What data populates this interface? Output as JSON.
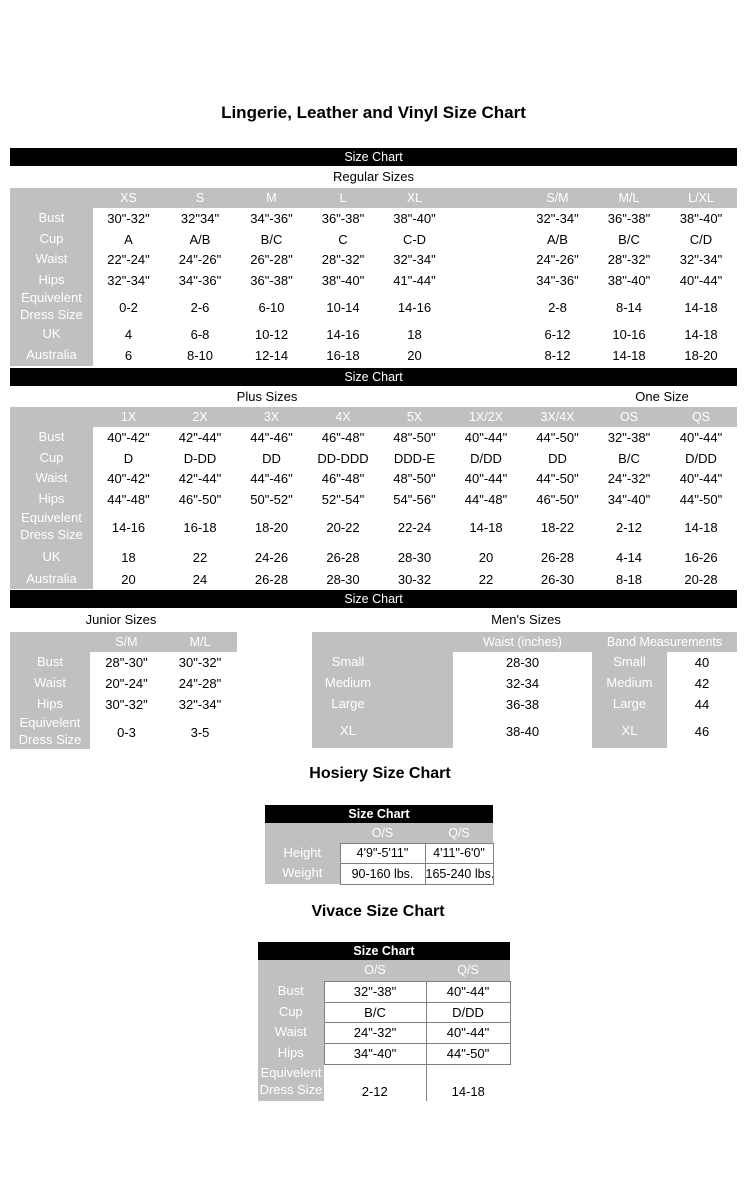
{
  "page_title": "Lingerie, Leather and Vinyl Size Chart",
  "size_chart_bar_label": "Size Chart",
  "colors": {
    "header_gray": "#c0c0c0",
    "bar_black": "#000000"
  },
  "regular": {
    "section_label": "Regular Sizes",
    "columns": [
      "XS",
      "S",
      "M",
      "L",
      "XL",
      "",
      "S/M",
      "M/L",
      "L/XL"
    ],
    "rows": [
      {
        "label": "Bust",
        "values": [
          "30\"-32\"",
          "32\"34\"",
          "34\"-36\"",
          "36\"-38\"",
          "38\"-40\"",
          "",
          "32\"-34\"",
          "36\"-38\"",
          "38\"-40\""
        ]
      },
      {
        "label": "Cup",
        "values": [
          "A",
          "A/B",
          "B/C",
          "C",
          "C-D",
          "",
          "A/B",
          "B/C",
          "C/D"
        ]
      },
      {
        "label": "Waist",
        "values": [
          "22\"-24\"",
          "24\"-26\"",
          "26\"-28\"",
          "28\"-32\"",
          "32\"-34\"",
          "",
          "24\"-26\"",
          "28\"-32\"",
          "32\"-34\""
        ]
      },
      {
        "label": "Hips",
        "values": [
          "32\"-34\"",
          "34\"-36\"",
          "36\"-38\"",
          "38\"-40\"",
          "41\"-44\"",
          "",
          "34\"-36\"",
          "38\"-40\"",
          "40\"-44\""
        ]
      },
      {
        "label": "Equivelent Dress Size",
        "values": [
          "0-2",
          "2-6",
          "6-10",
          "10-14",
          "14-16",
          "",
          "2-8",
          "8-14",
          "14-18"
        ]
      },
      {
        "label": "UK",
        "values": [
          "4",
          "6-8",
          "10-12",
          "14-16",
          "18",
          "",
          "6-12",
          "10-16",
          "14-18"
        ]
      },
      {
        "label": "Australia",
        "values": [
          "6",
          "8-10",
          "12-14",
          "16-18",
          "20",
          "",
          "8-12",
          "14-18",
          "18-20"
        ]
      }
    ]
  },
  "plus": {
    "section_label": "Plus Sizes",
    "one_size_label": "One Size",
    "columns": [
      "1X",
      "2X",
      "3X",
      "4X",
      "5X",
      "1X/2X",
      "3X/4X",
      "OS",
      "QS"
    ],
    "rows": [
      {
        "label": "Bust",
        "values": [
          "40\"-42\"",
          "42\"-44\"",
          "44\"-46\"",
          "46\"-48\"",
          "48\"-50\"",
          "40\"-44\"",
          "44\"-50\"",
          "32\"-38\"",
          "40\"-44\""
        ]
      },
      {
        "label": "Cup",
        "values": [
          "D",
          "D-DD",
          "DD",
          "DD-DDD",
          "DDD-E",
          "D/DD",
          "DD",
          "B/C",
          "D/DD"
        ]
      },
      {
        "label": "Waist",
        "values": [
          "40\"-42\"",
          "42\"-44\"",
          "44\"-46\"",
          "46\"-48\"",
          "48\"-50\"",
          "40\"-44\"",
          "44\"-50\"",
          "24\"-32\"",
          "40\"-44\""
        ]
      },
      {
        "label": "Hips",
        "values": [
          "44\"-48\"",
          "46\"-50\"",
          "50\"-52\"",
          "52\"-54\"",
          "54\"-56\"",
          "44\"-48\"",
          "46\"-50\"",
          "34\"-40\"",
          "44\"-50\""
        ]
      },
      {
        "label": "Equivelent Dress Size",
        "values": [
          "14-16",
          "16-18",
          "18-20",
          "20-22",
          "22-24",
          "14-18",
          "18-22",
          "2-12",
          "14-18"
        ]
      },
      {
        "label": "UK",
        "values": [
          "18",
          "22",
          "24-26",
          "26-28",
          "28-30",
          "20",
          "26-28",
          "4-14",
          "16-26"
        ]
      },
      {
        "label": "Australia",
        "values": [
          "20",
          "24",
          "26-28",
          "28-30",
          "30-32",
          "22",
          "26-30",
          "8-18",
          "20-28"
        ]
      }
    ]
  },
  "junior": {
    "section_label": "Junior Sizes",
    "columns": [
      "S/M",
      "M/L"
    ],
    "rows": [
      {
        "label": "Bust",
        "values": [
          "28\"-30\"",
          "30\"-32\""
        ]
      },
      {
        "label": "Waist",
        "values": [
          "20\"-24\"",
          "24\"-28\""
        ]
      },
      {
        "label": "Hips",
        "values": [
          "30\"-32\"",
          "32\"-34\""
        ]
      },
      {
        "label": "Equivelent Dress Size",
        "values": [
          "0-3",
          "3-5"
        ]
      }
    ]
  },
  "mens": {
    "section_label": "Men's Sizes",
    "waist_header": "Waist (inches)",
    "band_header": "Band Measurements",
    "rows": [
      {
        "size": "Small",
        "waist": "28-30",
        "band_size": "Small",
        "band": "40"
      },
      {
        "size": "Medium",
        "waist": "32-34",
        "band_size": "Medium",
        "band": "42"
      },
      {
        "size": "Large",
        "waist": "36-38",
        "band_size": "Large",
        "band": "44"
      },
      {
        "size": "XL",
        "waist": "38-40",
        "band_size": "XL",
        "band": "46"
      }
    ]
  },
  "hosiery": {
    "title": "Hosiery Size Chart",
    "columns": [
      "O/S",
      "Q/S"
    ],
    "rows": [
      {
        "label": "Height",
        "values": [
          "4'9\"-5'11\"",
          "4'11\"-6'0\""
        ]
      },
      {
        "label": "Weight",
        "values": [
          "90-160 lbs.",
          "165-240 lbs."
        ]
      }
    ]
  },
  "vivace": {
    "title": "Vivace Size Chart",
    "columns": [
      "O/S",
      "Q/S"
    ],
    "rows": [
      {
        "label": "Bust",
        "values": [
          "32\"-38\"",
          "40\"-44\""
        ]
      },
      {
        "label": "Cup",
        "values": [
          "B/C",
          "D/DD"
        ]
      },
      {
        "label": "Waist",
        "values": [
          "24\"-32\"",
          "40\"-44\""
        ]
      },
      {
        "label": "Hips",
        "values": [
          "34\"-40\"",
          "44\"-50\""
        ]
      },
      {
        "label": "Equivelent Dress Size",
        "values": [
          "2-12",
          "14-18"
        ]
      }
    ]
  }
}
